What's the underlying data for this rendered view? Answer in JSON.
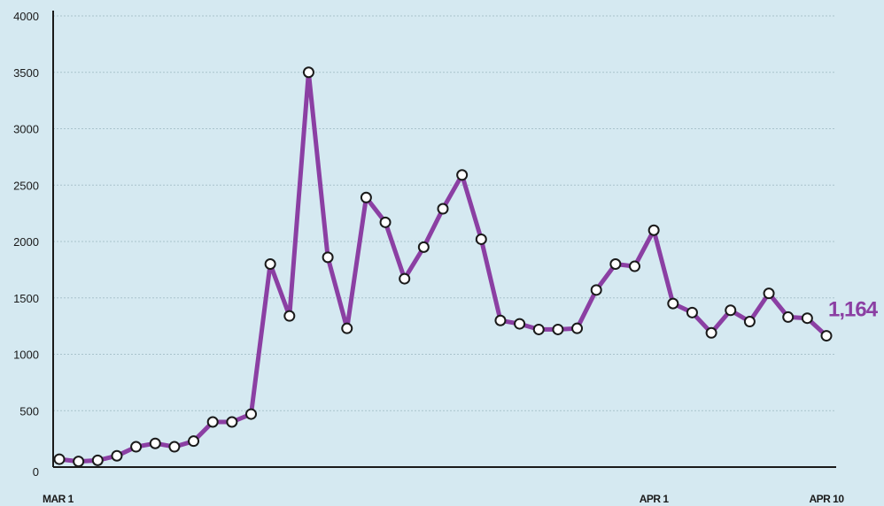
{
  "colors": {
    "background": "#d5e9f1",
    "series_line": "#8b3fa3",
    "marker_fill": "#ffffff",
    "marker_stroke": "#1a1a1a",
    "end_label": "#8b3fa3",
    "gridline": "#a9c3cc",
    "axis": "#1a1a1a"
  },
  "chart_data": {
    "type": "line",
    "title": "",
    "xlabel": "",
    "ylabel": "",
    "ylim": [
      0,
      4000
    ],
    "y_ticks": [
      "0",
      "500",
      "1000",
      "1500",
      "2000",
      "2500",
      "3000",
      "3500",
      "4000"
    ],
    "x_tick_labels": [
      {
        "label": "MAR 1",
        "index": 0
      },
      {
        "label": "APR 1",
        "index": 31
      },
      {
        "label": "APR 10",
        "index": 40
      }
    ],
    "grid": "horizontal dotted",
    "marker": "white circles",
    "end_label": "1,164",
    "series": [
      {
        "values": [
          70,
          50,
          60,
          100,
          180,
          210,
          180,
          230,
          400,
          400,
          470,
          1800,
          1340,
          3500,
          1860,
          1230,
          2390,
          2170,
          1670,
          1950,
          2290,
          2590,
          2020,
          1300,
          1270,
          1220,
          1220,
          1230,
          1570,
          1800,
          1780,
          2100,
          1450,
          1370,
          1190,
          1390,
          1290,
          1540,
          1330,
          1320,
          1164
        ]
      }
    ]
  }
}
